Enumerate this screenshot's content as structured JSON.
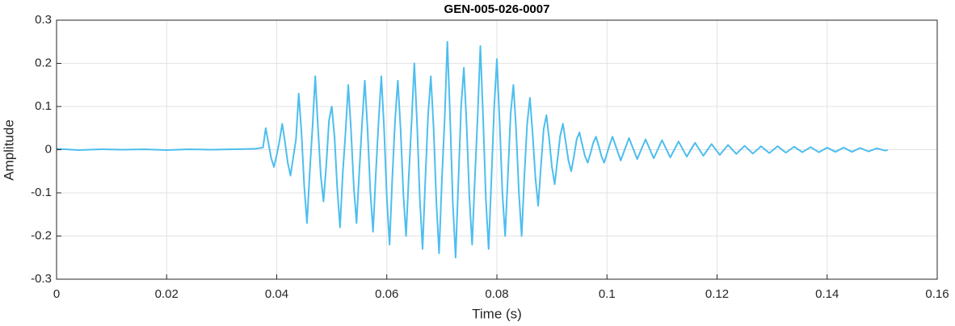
{
  "chart_data": {
    "type": "line",
    "title": "GEN-005-026-0007",
    "x_label": "Time (s)",
    "y_label": "Amplitude",
    "xlim": [
      0,
      0.16
    ],
    "ylim": [
      -0.3,
      0.3
    ],
    "xticks": [
      0,
      0.02,
      0.04,
      0.06,
      0.08,
      0.1,
      0.12,
      0.14,
      0.16
    ],
    "yticks": [
      -0.3,
      -0.2,
      -0.1,
      0,
      0.1,
      0.2,
      0.3
    ],
    "grid": true,
    "series": [
      {
        "color": "#4dbeee",
        "x": [
          0,
          0.004,
          0.008,
          0.012,
          0.016,
          0.02,
          0.024,
          0.028,
          0.032,
          0.036,
          0.0375,
          0.038,
          0.0385,
          0.039,
          0.0395,
          0.04,
          0.0405,
          0.041,
          0.0415,
          0.042,
          0.0425,
          0.043,
          0.0435,
          0.044,
          0.0445,
          0.045,
          0.0455,
          0.046,
          0.0465,
          0.047,
          0.0475,
          0.048,
          0.0485,
          0.049,
          0.0495,
          0.05,
          0.0505,
          0.051,
          0.0515,
          0.052,
          0.0525,
          0.053,
          0.0535,
          0.054,
          0.0545,
          0.055,
          0.0555,
          0.056,
          0.0565,
          0.057,
          0.0575,
          0.058,
          0.0585,
          0.059,
          0.0595,
          0.06,
          0.0605,
          0.061,
          0.0615,
          0.062,
          0.0625,
          0.063,
          0.0635,
          0.064,
          0.0645,
          0.065,
          0.0655,
          0.066,
          0.0665,
          0.067,
          0.0675,
          0.068,
          0.0685,
          0.069,
          0.0695,
          0.07,
          0.0705,
          0.071,
          0.0715,
          0.072,
          0.0725,
          0.073,
          0.0735,
          0.074,
          0.0745,
          0.075,
          0.0755,
          0.076,
          0.0765,
          0.077,
          0.0775,
          0.078,
          0.0785,
          0.079,
          0.0795,
          0.08,
          0.0805,
          0.081,
          0.0815,
          0.082,
          0.0825,
          0.083,
          0.0835,
          0.084,
          0.0845,
          0.085,
          0.0855,
          0.086,
          0.0865,
          0.087,
          0.0875,
          0.088,
          0.0885,
          0.089,
          0.0895,
          0.09,
          0.0905,
          0.091,
          0.0915,
          0.092,
          0.0925,
          0.093,
          0.0935,
          0.094,
          0.0945,
          0.095,
          0.0955,
          0.096,
          0.0965,
          0.097,
          0.0975,
          0.098,
          0.0985,
          0.099,
          0.0995,
          0.1,
          0.1005,
          0.101,
          0.1025,
          0.104,
          0.1055,
          0.107,
          0.1085,
          0.11,
          0.1115,
          0.113,
          0.1145,
          0.116,
          0.1175,
          0.119,
          0.1205,
          0.122,
          0.1235,
          0.125,
          0.1265,
          0.128,
          0.1295,
          0.131,
          0.1325,
          0.134,
          0.1355,
          0.137,
          0.1385,
          0.14,
          0.1415,
          0.143,
          0.1445,
          0.146,
          0.1475,
          0.149,
          0.1505,
          0.151
        ],
        "values": [
          0.002,
          -0.001,
          0.001,
          0,
          0.001,
          -0.001,
          0.001,
          0,
          0.001,
          0.002,
          0.005,
          0.05,
          0.015,
          -0.02,
          -0.04,
          -0.012,
          0.02,
          0.06,
          0.018,
          -0.03,
          -0.06,
          -0.018,
          0.024,
          0.13,
          0.039,
          -0.085,
          -0.17,
          -0.051,
          0.052,
          0.17,
          0.051,
          -0.06,
          -0.12,
          -0.036,
          0.068,
          0.1,
          0.03,
          -0.09,
          -0.18,
          -0.054,
          0.04,
          0.15,
          0.045,
          -0.085,
          -0.17,
          -0.051,
          0.06,
          0.16,
          0.048,
          -0.095,
          -0.19,
          -0.057,
          0.064,
          0.17,
          0.051,
          -0.11,
          -0.22,
          -0.066,
          0.068,
          0.16,
          0.048,
          -0.1,
          -0.2,
          -0.06,
          0.064,
          0.2,
          0.06,
          -0.115,
          -0.23,
          -0.069,
          0.08,
          0.17,
          0.051,
          -0.12,
          -0.24,
          -0.072,
          0.068,
          0.25,
          0.075,
          -0.125,
          -0.25,
          -0.075,
          0.1,
          0.19,
          0.057,
          -0.11,
          -0.22,
          -0.066,
          0.076,
          0.24,
          0.072,
          -0.115,
          -0.23,
          -0.069,
          0.096,
          0.21,
          0.063,
          -0.1,
          -0.2,
          -0.06,
          0.084,
          0.15,
          0.045,
          -0.1,
          -0.2,
          -0.06,
          0.06,
          0.12,
          0.036,
          -0.065,
          -0.13,
          -0.039,
          0.048,
          0.08,
          0.024,
          -0.04,
          -0.08,
          -0.024,
          0.032,
          0.06,
          0.018,
          -0.025,
          -0.05,
          -0.015,
          0.024,
          0.04,
          0.012,
          -0.015,
          -0.03,
          -0.009,
          0.016,
          0.03,
          0.009,
          -0.015,
          -0.03,
          -0.009,
          0.012,
          0.03,
          -0.025,
          0.027,
          -0.022,
          0.024,
          -0.02,
          0.022,
          -0.018,
          0.019,
          -0.016,
          0.016,
          -0.014,
          0.013,
          -0.012,
          0.011,
          -0.01,
          0.009,
          -0.009,
          0.008,
          -0.008,
          0.008,
          -0.007,
          0.007,
          -0.006,
          0.006,
          -0.006,
          0.005,
          -0.005,
          0.005,
          -0.005,
          0.004,
          -0.004,
          0.003,
          -0.002,
          -0.001
        ]
      }
    ]
  }
}
